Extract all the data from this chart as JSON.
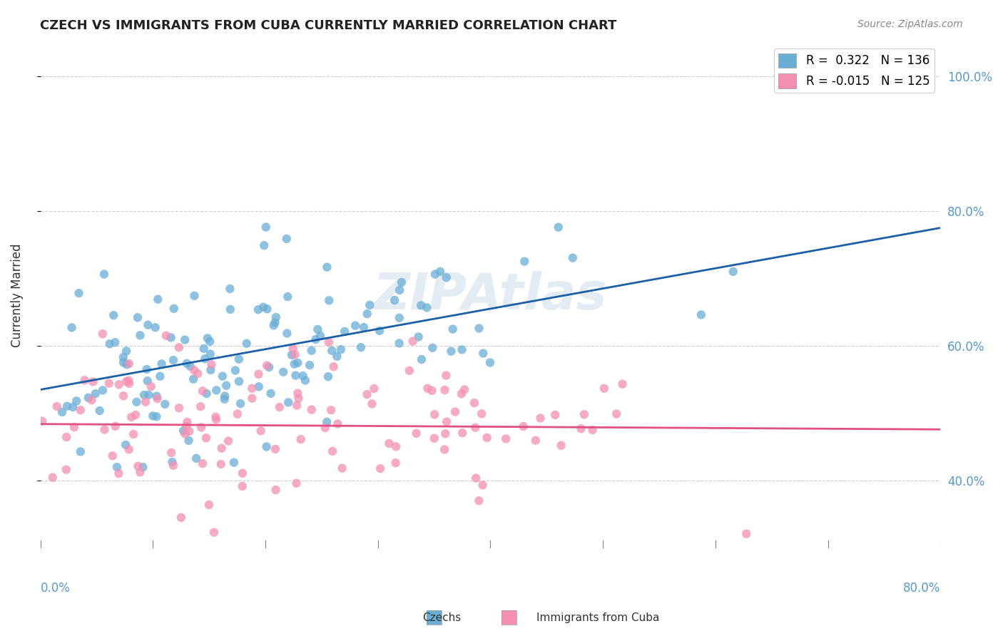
{
  "title": "CZECH VS IMMIGRANTS FROM CUBA CURRENTLY MARRIED CORRELATION CHART",
  "source": "Source: ZipAtlas.com",
  "ylabel": "Currently Married",
  "y_tick_labels": [
    "40.0%",
    "60.0%",
    "80.0%",
    "100.0%"
  ],
  "y_tick_values": [
    0.4,
    0.6,
    0.8,
    1.0
  ],
  "x_range": [
    0.0,
    0.8
  ],
  "y_range": [
    0.3,
    1.05
  ],
  "legend_label_blue": "R =  0.322   N = 136",
  "legend_label_pink": "R = -0.015   N = 125",
  "blue_color": "#6aaed6",
  "pink_color": "#f48fb1",
  "blue_line_color": "#1a5fa8",
  "pink_line_color": "#e05080",
  "watermark": "ZIPAtlas",
  "watermark_color": "#c8d8e8",
  "n_blue": 136,
  "n_pink": 125,
  "blue_intercept": 0.535,
  "blue_slope": 0.3,
  "pink_intercept": 0.484,
  "pink_slope": -0.01,
  "background_color": "#ffffff",
  "grid_color": "#cccccc"
}
